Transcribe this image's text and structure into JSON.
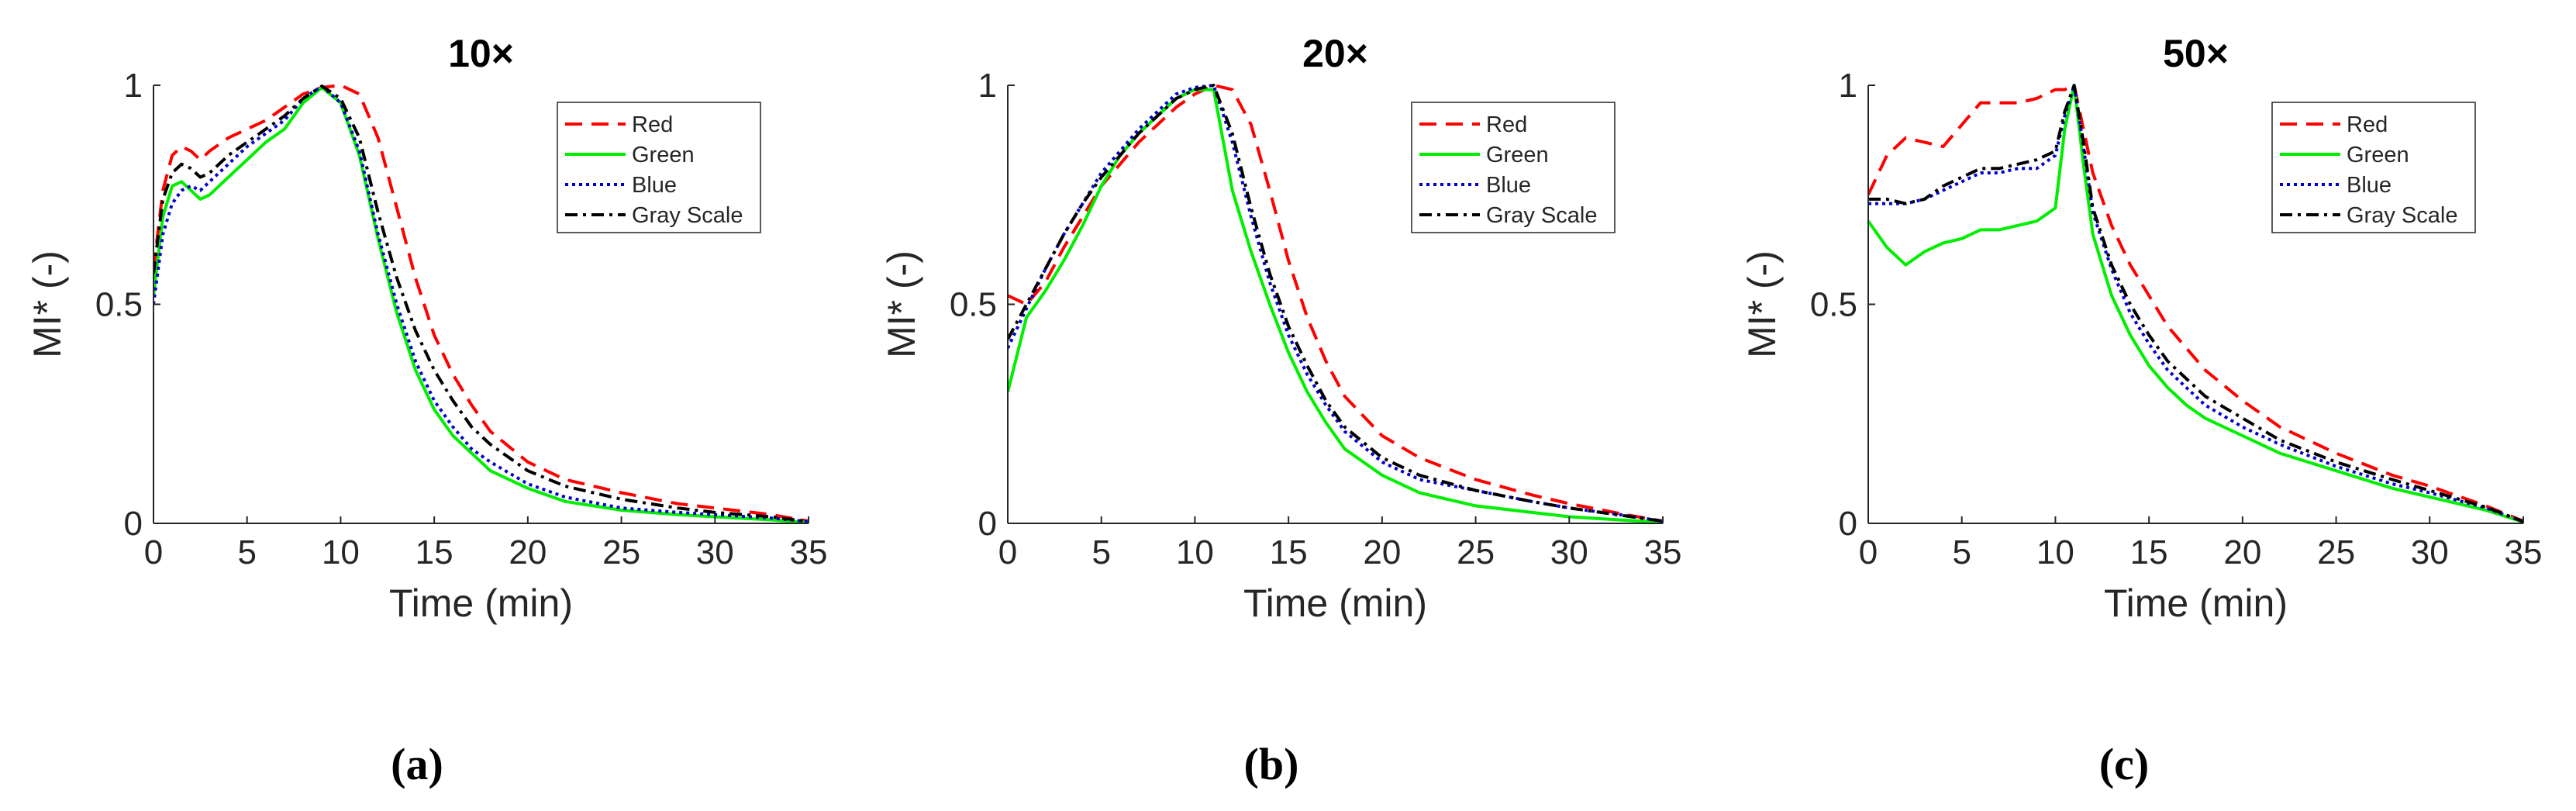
{
  "chart_data": [
    {
      "type": "line",
      "title": "10×",
      "xlabel": "Time (min)",
      "ylabel": "MI* (-)",
      "xlim": [
        0,
        35
      ],
      "ylim": [
        0,
        1
      ],
      "xticks": [
        0,
        5,
        10,
        15,
        20,
        25,
        30,
        35
      ],
      "xtick_labels": [
        "0",
        "5",
        "10",
        "15",
        "20",
        "25",
        "30",
        "35"
      ],
      "yticks": [
        0,
        0.5,
        1
      ],
      "ytick_labels": [
        "0",
        "0.5",
        "1"
      ],
      "legend_position": "top-right",
      "caption": "(a)",
      "series": [
        {
          "name": "Red",
          "color": "#ff0000",
          "style": "dashed",
          "x": [
            0,
            0.5,
            1,
            1.5,
            2,
            2.5,
            3,
            4,
            5,
            6,
            7,
            8,
            9,
            10,
            11,
            12,
            13,
            14,
            15,
            16,
            17,
            18,
            20,
            22,
            25,
            28,
            30,
            33,
            35
          ],
          "y": [
            0.58,
            0.76,
            0.84,
            0.86,
            0.85,
            0.83,
            0.85,
            0.88,
            0.9,
            0.92,
            0.95,
            0.98,
            0.995,
            1.0,
            0.98,
            0.88,
            0.72,
            0.56,
            0.43,
            0.34,
            0.27,
            0.21,
            0.14,
            0.1,
            0.07,
            0.045,
            0.035,
            0.02,
            0.005
          ]
        },
        {
          "name": "Green",
          "color": "#00ee00",
          "style": "solid",
          "x": [
            0,
            0.5,
            1,
            1.5,
            2,
            2.5,
            3,
            4,
            5,
            6,
            7,
            8,
            9,
            10,
            11,
            12,
            13,
            14,
            15,
            16,
            17,
            18,
            20,
            22,
            25,
            28,
            30,
            33,
            35
          ],
          "y": [
            0.52,
            0.7,
            0.77,
            0.78,
            0.76,
            0.74,
            0.75,
            0.79,
            0.83,
            0.87,
            0.9,
            0.96,
            0.995,
            0.96,
            0.84,
            0.65,
            0.48,
            0.35,
            0.26,
            0.2,
            0.16,
            0.12,
            0.08,
            0.05,
            0.03,
            0.02,
            0.015,
            0.008,
            0.002
          ]
        },
        {
          "name": "Blue",
          "color": "#0000cc",
          "style": "dotted",
          "x": [
            0,
            0.5,
            1,
            1.5,
            2,
            2.5,
            3,
            4,
            5,
            6,
            7,
            8,
            9,
            10,
            11,
            12,
            13,
            14,
            15,
            16,
            17,
            18,
            20,
            22,
            25,
            28,
            30,
            33,
            35
          ],
          "y": [
            0.5,
            0.66,
            0.73,
            0.76,
            0.77,
            0.76,
            0.78,
            0.82,
            0.86,
            0.89,
            0.92,
            0.97,
            0.998,
            0.96,
            0.85,
            0.66,
            0.5,
            0.37,
            0.28,
            0.22,
            0.17,
            0.14,
            0.09,
            0.06,
            0.035,
            0.025,
            0.02,
            0.012,
            0.004
          ]
        },
        {
          "name": "Gray Scale",
          "color": "#000000",
          "style": "dashdot",
          "x": [
            0,
            0.5,
            1,
            1.5,
            2,
            2.5,
            3,
            4,
            5,
            6,
            7,
            8,
            9,
            10,
            11,
            12,
            13,
            14,
            15,
            16,
            17,
            18,
            20,
            22,
            25,
            28,
            30,
            33,
            35
          ],
          "y": [
            0.57,
            0.74,
            0.8,
            0.82,
            0.81,
            0.79,
            0.8,
            0.84,
            0.87,
            0.9,
            0.93,
            0.97,
            0.998,
            0.97,
            0.88,
            0.71,
            0.56,
            0.44,
            0.35,
            0.28,
            0.22,
            0.18,
            0.12,
            0.085,
            0.055,
            0.035,
            0.025,
            0.015,
            0.004
          ]
        }
      ]
    },
    {
      "type": "line",
      "title": "20×",
      "xlabel": "Time (min)",
      "ylabel": "MI* (-)",
      "xlim": [
        0,
        35
      ],
      "ylim": [
        0,
        1
      ],
      "xticks": [
        0,
        5,
        10,
        15,
        20,
        25,
        30,
        35
      ],
      "xtick_labels": [
        "0",
        "5",
        "10",
        "15",
        "20",
        "25",
        "30",
        "35"
      ],
      "yticks": [
        0,
        0.5,
        1
      ],
      "ytick_labels": [
        "0",
        "0.5",
        "1"
      ],
      "legend_position": "top-right",
      "caption": "(b)",
      "series": [
        {
          "name": "Red",
          "color": "#ff0000",
          "style": "dashed",
          "x": [
            0,
            1,
            2,
            3,
            4,
            5,
            6,
            7,
            8,
            9,
            10,
            11,
            12,
            13,
            14,
            15,
            16,
            17,
            18,
            20,
            22,
            25,
            28,
            30,
            33,
            35
          ],
          "y": [
            0.52,
            0.5,
            0.55,
            0.63,
            0.7,
            0.77,
            0.82,
            0.87,
            0.91,
            0.95,
            0.98,
            1.0,
            0.99,
            0.91,
            0.76,
            0.6,
            0.47,
            0.37,
            0.29,
            0.2,
            0.15,
            0.1,
            0.065,
            0.045,
            0.02,
            0.005
          ]
        },
        {
          "name": "Green",
          "color": "#00ee00",
          "style": "solid",
          "x": [
            0,
            1,
            2,
            3,
            4,
            5,
            6,
            7,
            8,
            9,
            10,
            11,
            12,
            13,
            14,
            15,
            16,
            17,
            18,
            20,
            22,
            25,
            28,
            30,
            33,
            35
          ],
          "y": [
            0.3,
            0.47,
            0.53,
            0.6,
            0.68,
            0.77,
            0.84,
            0.89,
            0.93,
            0.97,
            0.99,
            0.99,
            0.76,
            0.62,
            0.5,
            0.39,
            0.3,
            0.23,
            0.17,
            0.11,
            0.07,
            0.04,
            0.025,
            0.015,
            0.007,
            0.002
          ]
        },
        {
          "name": "Blue",
          "color": "#0000cc",
          "style": "dotted",
          "x": [
            0,
            1,
            2,
            3,
            4,
            5,
            6,
            7,
            8,
            9,
            10,
            11,
            12,
            13,
            14,
            15,
            16,
            17,
            18,
            20,
            22,
            25,
            28,
            30,
            33,
            35
          ],
          "y": [
            0.4,
            0.49,
            0.58,
            0.66,
            0.73,
            0.8,
            0.85,
            0.9,
            0.94,
            0.98,
            0.995,
            1.0,
            0.87,
            0.7,
            0.55,
            0.43,
            0.34,
            0.27,
            0.21,
            0.14,
            0.1,
            0.075,
            0.05,
            0.035,
            0.018,
            0.005
          ]
        },
        {
          "name": "Gray Scale",
          "color": "#000000",
          "style": "dashdot",
          "x": [
            0,
            1,
            2,
            3,
            4,
            5,
            6,
            7,
            8,
            9,
            10,
            11,
            12,
            13,
            14,
            15,
            16,
            17,
            18,
            20,
            22,
            25,
            28,
            30,
            33,
            35
          ],
          "y": [
            0.42,
            0.5,
            0.58,
            0.66,
            0.73,
            0.79,
            0.84,
            0.89,
            0.93,
            0.97,
            0.99,
            1.0,
            0.89,
            0.72,
            0.57,
            0.45,
            0.36,
            0.28,
            0.22,
            0.15,
            0.11,
            0.075,
            0.05,
            0.035,
            0.017,
            0.005
          ]
        }
      ]
    },
    {
      "type": "line",
      "title": "50×",
      "xlabel": "Time (min)",
      "ylabel": "MI* (-)",
      "xlim": [
        0,
        35
      ],
      "ylim": [
        0,
        1
      ],
      "xticks": [
        0,
        5,
        10,
        15,
        20,
        25,
        30,
        35
      ],
      "xtick_labels": [
        "0",
        "5",
        "10",
        "15",
        "20",
        "25",
        "30",
        "35"
      ],
      "yticks": [
        0,
        0.5,
        1
      ],
      "ytick_labels": [
        "0",
        "0.5",
        "1"
      ],
      "legend_position": "top-right",
      "caption": "(c)",
      "series": [
        {
          "name": "Red",
          "color": "#ff0000",
          "style": "dashed",
          "x": [
            0,
            1,
            2,
            3,
            4,
            5,
            6,
            7,
            8,
            9,
            10,
            10.5,
            11,
            11.5,
            12,
            13,
            14,
            15,
            16,
            17,
            18,
            20,
            22,
            25,
            28,
            30,
            33,
            35
          ],
          "y": [
            0.75,
            0.84,
            0.88,
            0.87,
            0.86,
            0.91,
            0.96,
            0.96,
            0.96,
            0.97,
            0.99,
            0.99,
            1.0,
            0.9,
            0.8,
            0.68,
            0.59,
            0.52,
            0.45,
            0.4,
            0.35,
            0.28,
            0.22,
            0.16,
            0.11,
            0.085,
            0.04,
            0.005
          ]
        },
        {
          "name": "Green",
          "color": "#00ee00",
          "style": "solid",
          "x": [
            0,
            1,
            2,
            3,
            4,
            5,
            6,
            7,
            8,
            9,
            10,
            10.5,
            11,
            11.5,
            12,
            13,
            14,
            15,
            16,
            17,
            18,
            20,
            22,
            25,
            28,
            30,
            33,
            35
          ],
          "y": [
            0.69,
            0.63,
            0.59,
            0.62,
            0.64,
            0.65,
            0.67,
            0.67,
            0.68,
            0.69,
            0.72,
            0.9,
            1.0,
            0.82,
            0.66,
            0.52,
            0.43,
            0.36,
            0.31,
            0.27,
            0.24,
            0.2,
            0.16,
            0.12,
            0.08,
            0.06,
            0.03,
            0.003
          ]
        },
        {
          "name": "Blue",
          "color": "#0000cc",
          "style": "dotted",
          "x": [
            0,
            1,
            2,
            3,
            4,
            5,
            6,
            7,
            8,
            9,
            10,
            10.5,
            11,
            11.5,
            12,
            13,
            14,
            15,
            16,
            17,
            18,
            20,
            22,
            25,
            28,
            30,
            33,
            35
          ],
          "y": [
            0.73,
            0.73,
            0.73,
            0.74,
            0.76,
            0.78,
            0.8,
            0.8,
            0.81,
            0.81,
            0.84,
            0.93,
            1.0,
            0.86,
            0.71,
            0.58,
            0.48,
            0.41,
            0.35,
            0.31,
            0.27,
            0.22,
            0.18,
            0.13,
            0.09,
            0.07,
            0.035,
            0.004
          ]
        },
        {
          "name": "Gray Scale",
          "color": "#000000",
          "style": "dashdot",
          "x": [
            0,
            1,
            2,
            3,
            4,
            5,
            6,
            7,
            8,
            9,
            10,
            10.5,
            11,
            11.5,
            12,
            13,
            14,
            15,
            16,
            17,
            18,
            20,
            22,
            25,
            28,
            30,
            33,
            35
          ],
          "y": [
            0.74,
            0.74,
            0.73,
            0.74,
            0.77,
            0.79,
            0.81,
            0.81,
            0.82,
            0.83,
            0.85,
            0.94,
            1.0,
            0.87,
            0.72,
            0.59,
            0.5,
            0.43,
            0.37,
            0.33,
            0.29,
            0.24,
            0.19,
            0.14,
            0.1,
            0.075,
            0.037,
            0.004
          ]
        }
      ]
    }
  ]
}
